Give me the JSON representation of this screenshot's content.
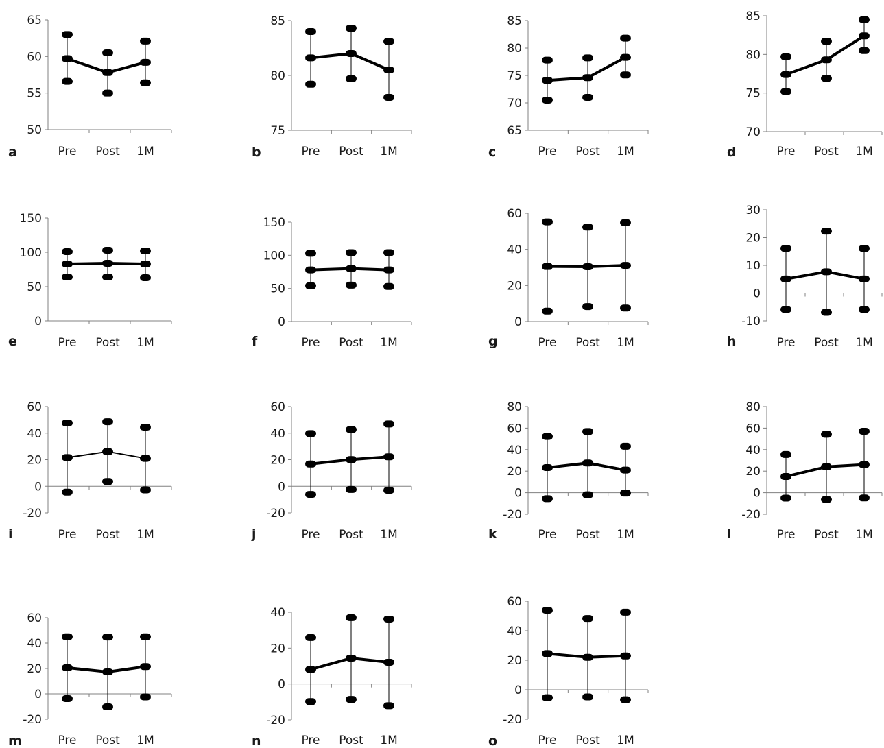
{
  "chart_data": [
    {
      "type": "line",
      "panel_label": "a",
      "categories": [
        "Pre",
        "Post",
        "1M"
      ],
      "ylim": [
        50,
        65
      ],
      "yticks": [
        50,
        55,
        60,
        65
      ],
      "mean": [
        59.7,
        57.8,
        59.2
      ],
      "lower": [
        56.6,
        55.0,
        56.4
      ],
      "upper": [
        63.0,
        60.5,
        62.1
      ]
    },
    {
      "type": "line",
      "panel_label": "b",
      "categories": [
        "Pre",
        "Post",
        "1M"
      ],
      "ylim": [
        75,
        85
      ],
      "yticks": [
        75,
        80,
        85
      ],
      "mean": [
        81.6,
        82.0,
        80.5
      ],
      "lower": [
        79.2,
        79.7,
        78.0
      ],
      "upper": [
        84.0,
        84.3,
        83.1
      ]
    },
    {
      "type": "line",
      "panel_label": "c",
      "categories": [
        "Pre",
        "Post",
        "1M"
      ],
      "ylim": [
        65,
        85
      ],
      "yticks": [
        65,
        70,
        75,
        80,
        85
      ],
      "mean": [
        74.1,
        74.6,
        78.3
      ],
      "lower": [
        70.5,
        71.0,
        75.1
      ],
      "upper": [
        77.8,
        78.2,
        81.8
      ]
    },
    {
      "type": "line",
      "panel_label": "d",
      "categories": [
        "Pre",
        "Post",
        "1M"
      ],
      "ylim": [
        70,
        85
      ],
      "yticks": [
        70,
        75,
        80,
        85
      ],
      "mean": [
        77.4,
        79.3,
        82.4
      ],
      "lower": [
        75.2,
        76.9,
        80.5
      ],
      "upper": [
        79.7,
        81.7,
        84.5
      ]
    },
    {
      "type": "line",
      "panel_label": "e",
      "categories": [
        "Pre",
        "Post",
        "1M"
      ],
      "ylim": [
        0,
        150
      ],
      "yticks": [
        0,
        50,
        100,
        150
      ],
      "mean": [
        83,
        84,
        83
      ],
      "lower": [
        64,
        64,
        63
      ],
      "upper": [
        101,
        103,
        102
      ]
    },
    {
      "type": "line",
      "panel_label": "f",
      "categories": [
        "Pre",
        "Post",
        "1M"
      ],
      "ylim": [
        0,
        150
      ],
      "yticks": [
        0,
        50,
        100,
        150
      ],
      "mean": [
        78,
        80,
        78
      ],
      "lower": [
        54,
        55,
        53
      ],
      "upper": [
        103,
        104,
        104
      ]
    },
    {
      "type": "line",
      "panel_label": "g",
      "categories": [
        "Pre",
        "Post",
        "1M"
      ],
      "ylim": [
        0,
        60
      ],
      "yticks": [
        0,
        20,
        40,
        60
      ],
      "mean": [
        30.5,
        30.4,
        31.1
      ],
      "lower": [
        5.8,
        8.3,
        7.5
      ],
      "upper": [
        55.2,
        52.3,
        54.8
      ]
    },
    {
      "type": "line",
      "panel_label": "h",
      "categories": [
        "Pre",
        "Post",
        "1M"
      ],
      "ylim": [
        -10,
        30
      ],
      "yticks": [
        -10,
        0,
        10,
        20,
        30
      ],
      "mean": [
        5.1,
        7.7,
        5.1
      ],
      "lower": [
        -5.9,
        -6.9,
        -5.9
      ],
      "upper": [
        16.1,
        22.3,
        16.1
      ]
    },
    {
      "type": "line",
      "panel_label": "i",
      "categories": [
        "Pre",
        "Post",
        "1M"
      ],
      "ylim": [
        -20,
        60
      ],
      "yticks": [
        -20,
        0,
        20,
        40,
        60
      ],
      "mean": [
        21.6,
        26.1,
        21.0
      ],
      "lower": [
        -4.4,
        3.6,
        -2.7
      ],
      "upper": [
        47.6,
        48.6,
        44.5
      ]
    },
    {
      "type": "line",
      "panel_label": "j",
      "categories": [
        "Pre",
        "Post",
        "1M"
      ],
      "ylim": [
        -20,
        60
      ],
      "yticks": [
        -20,
        0,
        20,
        40,
        60
      ],
      "mean": [
        16.8,
        20.1,
        22.2
      ],
      "lower": [
        -6.1,
        -2.4,
        -3.0
      ],
      "upper": [
        39.7,
        42.7,
        46.9
      ]
    },
    {
      "type": "line",
      "panel_label": "k",
      "categories": [
        "Pre",
        "Post",
        "1M"
      ],
      "ylim": [
        -20,
        80
      ],
      "yticks": [
        -20,
        0,
        20,
        40,
        60,
        80
      ],
      "mean": [
        23.3,
        27.6,
        21.0
      ],
      "lower": [
        -5.6,
        -1.9,
        -0.3
      ],
      "upper": [
        52.2,
        56.8,
        43.1
      ]
    },
    {
      "type": "line",
      "panel_label": "l",
      "categories": [
        "Pre",
        "Post",
        "1M"
      ],
      "ylim": [
        -20,
        80
      ],
      "yticks": [
        -20,
        0,
        20,
        40,
        60,
        80
      ],
      "mean": [
        15.0,
        24.1,
        26.1
      ],
      "lower": [
        -5.0,
        -6.3,
        -4.9
      ],
      "upper": [
        35.5,
        54.3,
        57.1
      ]
    },
    {
      "type": "line",
      "panel_label": "m",
      "categories": [
        "Pre",
        "Post",
        "1M"
      ],
      "ylim": [
        -20,
        60
      ],
      "yticks": [
        -20,
        0,
        20,
        40,
        60
      ],
      "mean": [
        20.6,
        17.3,
        21.5
      ],
      "lower": [
        -3.8,
        -10.3,
        -2.4
      ],
      "upper": [
        45.0,
        44.8,
        45.0
      ]
    },
    {
      "type": "line",
      "panel_label": "n",
      "categories": [
        "Pre",
        "Post",
        "1M"
      ],
      "ylim": [
        -20,
        40
      ],
      "yticks": [
        -20,
        0,
        20,
        40
      ],
      "mean": [
        8.1,
        14.4,
        12.1
      ],
      "lower": [
        -9.8,
        -8.6,
        -12.1
      ],
      "upper": [
        25.9,
        37.0,
        36.2
      ]
    },
    {
      "type": "line",
      "panel_label": "o",
      "categories": [
        "Pre",
        "Post",
        "1M"
      ],
      "ylim": [
        -20,
        60
      ],
      "yticks": [
        -20,
        0,
        20,
        40,
        60
      ],
      "mean": [
        24.5,
        22.0,
        22.9
      ],
      "lower": [
        -5.4,
        -4.9,
        -6.8
      ],
      "upper": [
        53.9,
        48.3,
        52.6
      ]
    }
  ]
}
